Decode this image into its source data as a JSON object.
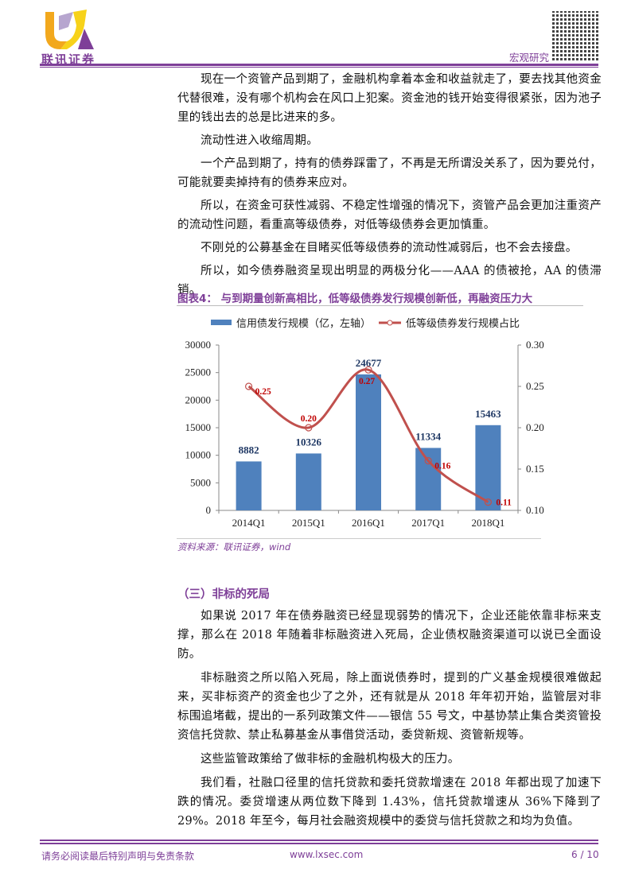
{
  "header": {
    "company_name": "联讯证券",
    "section": "宏观研究",
    "accent_color": "#7e3f98"
  },
  "paragraphs_top": [
    "现在一个资管产品到期了，金融机构拿着本金和收益就走了，要去找其他资金代替很难，没有哪个机构会在风口上犯案。资金池的钱开始变得很紧张，因为池子里的钱出去的总是比进来的多。",
    "流动性进入收缩周期。",
    "一个产品到期了，持有的债券踩雷了，不再是无所谓没关系了，因为要兑付，可能就要卖掉持有的债券来应对。",
    "所以，在资金可获性减弱、不稳定性增强的情况下，资管产品会更加注重资产的流动性问题，看重高等级债券，对低等级债券会更加慎重。",
    "不刚兑的公募基金在目睹买低等级债券的流动性减弱后，也不会去接盘。",
    "所以，如今债券融资呈现出明显的两极分化——AAA 的债被抢，AA 的债滞销。"
  ],
  "figure": {
    "title": "图表4：  与到期量创新高相比，低等级债券发行规模创新低，再融资压力大",
    "source": "资料来源：联讯证券，wind"
  },
  "chart_data": {
    "type": "bar+line",
    "categories": [
      "2014Q1",
      "2015Q1",
      "2016Q1",
      "2017Q1",
      "2018Q1"
    ],
    "series": [
      {
        "name": "信用债发行规模（亿，左轴）",
        "type": "bar",
        "axis": "left",
        "color": "#4f81bd",
        "values": [
          8882,
          10326,
          24677,
          11334,
          15463
        ]
      },
      {
        "name": "低等级债券发行规模占比",
        "type": "line",
        "axis": "right",
        "color": "#c0504d",
        "values": [
          0.25,
          0.2,
          0.27,
          0.16,
          0.11
        ],
        "labels": [
          "0.25",
          "0.20",
          "0.27",
          "0.16",
          "0.11"
        ]
      }
    ],
    "left_axis": {
      "ylim": [
        0,
        30000
      ],
      "ticks": [
        "0",
        "5000",
        "10000",
        "15000",
        "20000",
        "25000",
        "30000"
      ]
    },
    "right_axis": {
      "ylim": [
        0.1,
        0.3
      ],
      "ticks": [
        "0.10",
        "0.15",
        "0.20",
        "0.25",
        "0.30"
      ]
    },
    "legend_position": "top",
    "grid": false
  },
  "section": {
    "heading": "（三）非标的死局",
    "paragraphs": [
      "如果说 2017 年在债券融资已经显现弱势的情况下，企业还能依靠非标来支撑，那么在 2018 年随着非标融资进入死局，企业债权融资渠道可以说已全面设防。",
      "非标融资之所以陷入死局，除上面说债券时，提到的广义基金规模很难做起来，买非标资产的资金也少了之外，还有就是从 2018 年年初开始，监管层对非标围追堵截，提出的一系列政策文件——银信 55 号文，中基协禁止集合类资管投资信托贷款、禁止私募基金从事借贷活动，委贷新规、资管新规等。",
      "这些监管政策给了做非标的金融机构极大的压力。",
      "我们看，社融口径里的信托贷款和委托贷款增速在 2018 年都出现了加速下跌的情况。委贷增速从两位数下降到 1.43%，信托贷款增速从 36%下降到了 29%。2018 年至今，每月社会融资规模中的委贷与信托贷款之和均为负值。"
    ]
  },
  "footer": {
    "disclaimer": "请务必阅读最后特别声明与免责条款",
    "website": "www.lxsec.com",
    "page": "6 / 10"
  }
}
